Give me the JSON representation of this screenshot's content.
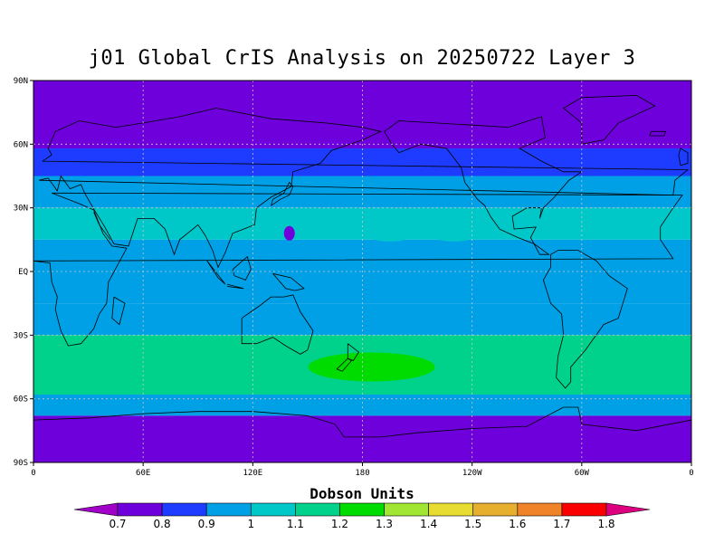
{
  "title": "j01 Global CrIS Analysis on 20250722 Layer 3",
  "lat_labels": [
    "90N",
    "60N",
    "30N",
    "EQ",
    "30S",
    "60S",
    "90S"
  ],
  "lon_labels": [
    "0",
    "60E",
    "120E",
    "180",
    "120W",
    "60W",
    "0"
  ],
  "colorbar": {
    "title": "Dobson Units",
    "tick_labels": [
      "0.7",
      "0.8",
      "0.9",
      "1",
      "1.1",
      "1.2",
      "1.3",
      "1.4",
      "1.5",
      "1.6",
      "1.7",
      "1.8"
    ],
    "colors": [
      "#a000c8",
      "#6e00dc",
      "#1e3cff",
      "#00a0e6",
      "#00c8c8",
      "#00d28c",
      "#00dc00",
      "#a0e632",
      "#e6dc32",
      "#e6af2d",
      "#f08228",
      "#fa0000",
      "#dc0080"
    ]
  },
  "chart_data": {
    "type": "heatmap",
    "title": "j01 Global CrIS Analysis on 20250722 Layer 3",
    "xlabel": "",
    "ylabel": "",
    "units": "Dobson Units",
    "lon_range": [
      0,
      360
    ],
    "lat_range": [
      -90,
      90
    ],
    "levels": [
      0.7,
      0.8,
      0.9,
      1.0,
      1.1,
      1.2,
      1.3,
      1.4,
      1.5,
      1.6,
      1.7,
      1.8
    ],
    "zonal_bands": [
      {
        "lat_from": 90,
        "lat_to": 58,
        "value": 0.7
      },
      {
        "lat_from": 58,
        "lat_to": 45,
        "value": 0.8
      },
      {
        "lat_from": 45,
        "lat_to": 30,
        "value": 0.9
      },
      {
        "lat_from": 30,
        "lat_to": 15,
        "value": 1.0
      },
      {
        "lat_from": 15,
        "lat_to": -15,
        "value": 0.9
      },
      {
        "lat_from": -15,
        "lat_to": -30,
        "value": 0.9
      },
      {
        "lat_from": -30,
        "lat_to": -45,
        "value": 1.1
      },
      {
        "lat_from": -45,
        "lat_to": -58,
        "value": 1.1
      },
      {
        "lat_from": -58,
        "lat_to": -68,
        "value": 0.9
      },
      {
        "lat_from": -68,
        "lat_to": -90,
        "value": 0.7
      }
    ],
    "features": [
      {
        "name": "south-pacific-maximum",
        "lon": 185,
        "lat": -45,
        "value": 1.2
      },
      {
        "name": "tibet-minimum",
        "lon": 140,
        "lat": 18,
        "value": 0.7
      }
    ],
    "grid": true,
    "legend": "bottom"
  }
}
